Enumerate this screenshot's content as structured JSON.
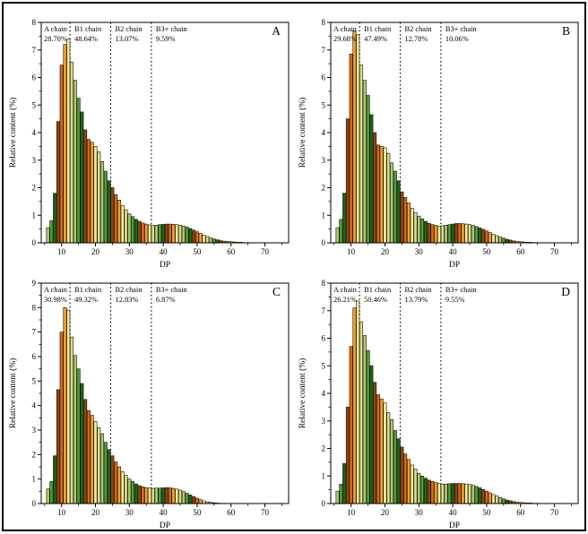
{
  "figure": {
    "ylabel": "Relative content (%)",
    "xlabel": "DP",
    "colors": {
      "background": "#ffffff",
      "axis": "#000000",
      "bar_border": "#1a1000",
      "boundary_line": "#000000",
      "palette_by_dp_mod8": [
        "#1B6619",
        "#8B4513",
        "#D2691E",
        "#F2A22F",
        "#F6ECA0",
        "#D9DE8E",
        "#A9C976",
        "#4F9C3A"
      ]
    }
  },
  "chart_data": [
    {
      "type": "bar",
      "panel_label": "A",
      "xlabel": "DP",
      "ylabel": "Relative content (%)",
      "xlim": [
        4,
        77
      ],
      "ylim": [
        0,
        8
      ],
      "xticks": [
        10,
        20,
        30,
        40,
        50,
        60,
        70
      ],
      "x_start_dp": 6,
      "region_boundaries_dp": [
        12.5,
        24.5,
        36.5
      ],
      "regions": [
        {
          "label": "A chain",
          "value": "28.70%"
        },
        {
          "label": "B1 chain",
          "value": "48.64%"
        },
        {
          "label": "B2 chain",
          "value": "13.07%"
        },
        {
          "label": "B3+ chain",
          "value": "9.59%"
        }
      ],
      "values": [
        0.55,
        0.8,
        1.8,
        4.4,
        6.45,
        7.2,
        7.4,
        6.55,
        5.9,
        5.25,
        4.75,
        4.1,
        3.75,
        3.65,
        3.5,
        3.3,
        2.95,
        2.6,
        2.25,
        2.0,
        1.75,
        1.55,
        1.35,
        1.2,
        1.05,
        0.95,
        0.85,
        0.78,
        0.72,
        0.68,
        0.65,
        0.63,
        0.64,
        0.66,
        0.67,
        0.68,
        0.68,
        0.67,
        0.66,
        0.64,
        0.61,
        0.57,
        0.52,
        0.46,
        0.4,
        0.34,
        0.28,
        0.23,
        0.18,
        0.14,
        0.11,
        0.08,
        0.06,
        0.05,
        0.04,
        0.03,
        0.02,
        0.02,
        0.01,
        0.01
      ]
    },
    {
      "type": "bar",
      "panel_label": "B",
      "xlabel": "DP",
      "ylabel": "Relative content (%)",
      "xlim": [
        4,
        77
      ],
      "ylim": [
        0,
        8
      ],
      "xticks": [
        10,
        20,
        30,
        40,
        50,
        60,
        70
      ],
      "x_start_dp": 6,
      "region_boundaries_dp": [
        12.5,
        24.5,
        36.5
      ],
      "regions": [
        {
          "label": "A chain",
          "value": "29.68%"
        },
        {
          "label": "B1 chain",
          "value": "47.49%"
        },
        {
          "label": "B2 chain",
          "value": "12.78%"
        },
        {
          "label": "B3+ chain",
          "value": "10.06%"
        }
      ],
      "values": [
        0.55,
        0.85,
        1.8,
        4.5,
        6.85,
        7.7,
        7.55,
        6.45,
        5.9,
        5.35,
        4.65,
        4.0,
        3.55,
        3.5,
        3.45,
        3.25,
        2.9,
        2.6,
        2.25,
        1.85,
        1.65,
        1.45,
        1.25,
        1.1,
        0.97,
        0.87,
        0.78,
        0.71,
        0.66,
        0.63,
        0.61,
        0.62,
        0.64,
        0.66,
        0.68,
        0.7,
        0.7,
        0.69,
        0.68,
        0.66,
        0.63,
        0.59,
        0.54,
        0.49,
        0.43,
        0.37,
        0.31,
        0.26,
        0.21,
        0.17,
        0.13,
        0.1,
        0.07,
        0.05,
        0.04,
        0.03,
        0.02,
        0.02,
        0.01,
        0.01
      ]
    },
    {
      "type": "bar",
      "panel_label": "C",
      "xlabel": "DP",
      "ylabel": "Relative content (%)",
      "xlim": [
        4,
        77
      ],
      "ylim": [
        0,
        9
      ],
      "xticks": [
        10,
        20,
        30,
        40,
        50,
        60,
        70
      ],
      "x_start_dp": 6,
      "region_boundaries_dp": [
        12.5,
        24.5,
        36.5
      ],
      "regions": [
        {
          "label": "A chain",
          "value": "30.98%"
        },
        {
          "label": "B1 chain",
          "value": "49.32%"
        },
        {
          "label": "B2 chain",
          "value": "12.83%"
        },
        {
          "label": "B3+ chain",
          "value": "6.87%"
        }
      ],
      "values": [
        0.6,
        0.9,
        1.95,
        4.65,
        7.0,
        8.0,
        7.9,
        6.8,
        6.05,
        5.5,
        4.9,
        4.25,
        3.8,
        3.6,
        3.35,
        3.1,
        2.85,
        2.5,
        2.2,
        1.95,
        1.7,
        1.5,
        1.3,
        1.15,
        1.0,
        0.9,
        0.8,
        0.73,
        0.68,
        0.65,
        0.63,
        0.62,
        0.63,
        0.63,
        0.64,
        0.65,
        0.64,
        0.62,
        0.59,
        0.55,
        0.49,
        0.42,
        0.35,
        0.28,
        0.22,
        0.16,
        0.11,
        0.07,
        0.05,
        0.03,
        0.02,
        0.01,
        0.01
      ]
    },
    {
      "type": "bar",
      "panel_label": "D",
      "xlabel": "DP",
      "ylabel": "Relative content (%)",
      "xlim": [
        4,
        77
      ],
      "ylim": [
        0,
        8
      ],
      "xticks": [
        10,
        20,
        30,
        40,
        50,
        60,
        70
      ],
      "x_start_dp": 6,
      "region_boundaries_dp": [
        12.5,
        24.5,
        36.5
      ],
      "regions": [
        {
          "label": "A chain",
          "value": "26.21%"
        },
        {
          "label": "B1 chain",
          "value": "50.46%"
        },
        {
          "label": "B2 chain",
          "value": "13.79%"
        },
        {
          "label": "B3+ chain",
          "value": "9.55%"
        }
      ],
      "values": [
        0.45,
        0.7,
        1.45,
        3.5,
        5.7,
        7.1,
        7.35,
        6.6,
        6.1,
        5.55,
        5.0,
        4.4,
        3.95,
        3.8,
        3.65,
        3.3,
        3.05,
        2.65,
        2.35,
        2.05,
        1.8,
        1.6,
        1.4,
        1.25,
        1.1,
        1.0,
        0.92,
        0.85,
        0.8,
        0.76,
        0.73,
        0.71,
        0.71,
        0.72,
        0.73,
        0.73,
        0.73,
        0.72,
        0.71,
        0.69,
        0.66,
        0.62,
        0.57,
        0.51,
        0.45,
        0.39,
        0.33,
        0.27,
        0.22,
        0.17,
        0.13,
        0.1,
        0.07,
        0.05,
        0.04,
        0.03,
        0.02,
        0.02,
        0.01,
        0.01
      ]
    }
  ]
}
